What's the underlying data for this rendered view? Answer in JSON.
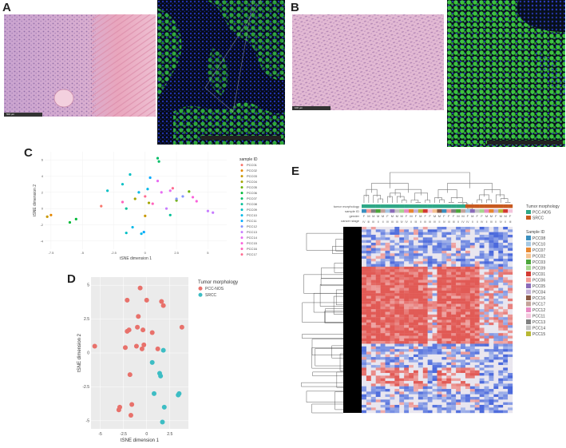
{
  "panels": {
    "A": "A",
    "B": "B",
    "C": "C",
    "D": "D",
    "E": "E"
  },
  "micrographs": {
    "A_he_scale": "500 µm",
    "B_he_scale": "100 µm"
  },
  "colors": {
    "he_pink": "#e7b8cf",
    "he_purple": "#9a6fa8",
    "if_green": "#3ad13a",
    "if_blue": "#1e2a9c",
    "heat_high": "#e8635a",
    "heat_low": "#4a6fd0",
    "pcc_nos": "#2fa887",
    "srcc": "#c85a20",
    "d_pcc": "#e8716b",
    "d_srcc": "#3dbdc4"
  },
  "chart_data": [
    {
      "panel": "C",
      "type": "scatter",
      "xlabel": "tSNE dimension 1",
      "ylabel": "tSNE dimension 2",
      "xticks": [
        -7.5,
        -5.0,
        -2.5,
        0.0,
        2.5,
        5.0
      ],
      "yticks": [
        -4,
        -2,
        0,
        2,
        4,
        6
      ],
      "xlim": [
        -8,
        6.5
      ],
      "ylim": [
        -5,
        7
      ],
      "legend_title": "sample ID",
      "legend_position": "right",
      "series": [
        {
          "name": "PCC01",
          "color": "#f8766d",
          "points": [
            [
              -3.5,
              0.3
            ]
          ]
        },
        {
          "name": "PCC02",
          "color": "#e58700",
          "points": [
            [
              -7.5,
              -0.8
            ]
          ]
        },
        {
          "name": "PCC03",
          "color": "#c99800",
          "points": [
            [
              -7.8,
              -1.0
            ],
            [
              0.0,
              -0.9
            ]
          ]
        },
        {
          "name": "PCC04",
          "color": "#a3a500",
          "points": [
            [
              -0.8,
              1.2
            ],
            [
              0.3,
              0.7
            ]
          ]
        },
        {
          "name": "PCC05",
          "color": "#6bb100",
          "points": [
            [
              2.5,
              1.0
            ],
            [
              3.5,
              2.1
            ]
          ]
        },
        {
          "name": "PCC06",
          "color": "#00ba38",
          "points": [
            [
              -5.5,
              -1.3
            ],
            [
              -6.0,
              -1.7
            ]
          ]
        },
        {
          "name": "PCC07",
          "color": "#00be67",
          "points": [
            [
              1.0,
              6.2
            ],
            [
              1.1,
              5.8
            ]
          ]
        },
        {
          "name": "PCC08",
          "color": "#00bf96",
          "points": [
            [
              -1.5,
              0.0
            ],
            [
              2.0,
              -0.8
            ]
          ]
        },
        {
          "name": "PCC09",
          "color": "#00bfc4",
          "points": [
            [
              -3.0,
              2.2
            ],
            [
              -1.8,
              3.0
            ],
            [
              -1.5,
              -3.0
            ],
            [
              -1.2,
              4.2
            ]
          ]
        },
        {
          "name": "PCC10",
          "color": "#00b8e7",
          "points": [
            [
              -0.5,
              2.0
            ],
            [
              0.2,
              2.4
            ],
            [
              -1.0,
              -2.3
            ],
            [
              -0.3,
              -3.1
            ]
          ]
        },
        {
          "name": "PCC11",
          "color": "#00a9ff",
          "points": [
            [
              0.4,
              3.8
            ],
            [
              -0.1,
              -2.9
            ]
          ]
        },
        {
          "name": "PCC12",
          "color": "#8494ff",
          "points": [
            [
              2.5,
              1.2
            ],
            [
              3.0,
              1.5
            ]
          ]
        },
        {
          "name": "PCC13",
          "color": "#c77cff",
          "points": [
            [
              1.7,
              0.0
            ],
            [
              5.0,
              -0.3
            ],
            [
              5.4,
              -0.5
            ]
          ]
        },
        {
          "name": "PCC14",
          "color": "#e76bf3",
          "points": [
            [
              1.3,
              2.0
            ],
            [
              2.0,
              2.2
            ],
            [
              1.0,
              3.4
            ]
          ]
        },
        {
          "name": "PCC15",
          "color": "#fa62db",
          "points": [
            [
              3.8,
              1.4
            ],
            [
              4.1,
              0.9
            ]
          ]
        },
        {
          "name": "PCC16",
          "color": "#ff62bc",
          "points": [
            [
              0.6,
              0.6
            ],
            [
              -1.8,
              0.8
            ]
          ]
        },
        {
          "name": "PCC17",
          "color": "#ff6c91",
          "points": [
            [
              2.2,
              2.5
            ],
            [
              0.0,
              1.5
            ]
          ]
        }
      ]
    },
    {
      "panel": "D",
      "type": "scatter",
      "xlabel": "tSNE dimension 1",
      "ylabel": "tSNE dimension 2",
      "xticks": [
        -5.0,
        -2.5,
        0.0,
        2.5
      ],
      "yticks": [
        -5.0,
        -2.5,
        0.0,
        2.5,
        5.0
      ],
      "xlim": [
        -6,
        4.5
      ],
      "ylim": [
        -5.6,
        5.6
      ],
      "legend_title": "Tumor morphology",
      "legend_position": "right",
      "series": [
        {
          "name": "PCC-NOS",
          "color": "#e8716b",
          "points": [
            [
              -0.7,
              4.8
            ],
            [
              -2.1,
              3.9
            ],
            [
              0.0,
              3.9
            ],
            [
              1.6,
              3.8
            ],
            [
              1.8,
              3.5
            ],
            [
              -0.9,
              2.7
            ],
            [
              -1.9,
              1.7
            ],
            [
              -2.1,
              1.6
            ],
            [
              -1.0,
              1.9
            ],
            [
              -0.4,
              1.7
            ],
            [
              0.6,
              1.5
            ],
            [
              3.8,
              1.9
            ],
            [
              -5.6,
              0.5
            ],
            [
              -2.3,
              0.4
            ],
            [
              -1.1,
              0.5
            ],
            [
              -0.3,
              0.6
            ],
            [
              -0.5,
              0.3
            ],
            [
              1.2,
              0.3
            ],
            [
              -1.8,
              -1.6
            ],
            [
              -2.9,
              -4.0
            ],
            [
              -3.0,
              -4.2
            ],
            [
              -1.6,
              -3.8
            ],
            [
              -1.7,
              -4.6
            ]
          ]
        },
        {
          "name": "SRCC",
          "color": "#3dbdc4",
          "points": [
            [
              1.8,
              0.2
            ],
            [
              0.6,
              -0.7
            ],
            [
              1.4,
              -1.5
            ],
            [
              1.5,
              -1.7
            ],
            [
              0.8,
              -3.0
            ],
            [
              3.5,
              -3.0
            ],
            [
              3.4,
              -3.1
            ],
            [
              1.9,
              -4.0
            ],
            [
              1.7,
              -5.1
            ]
          ]
        }
      ]
    },
    {
      "panel": "E",
      "type": "heatmap",
      "annotation_labels": [
        "tumor morphology",
        "sample ID",
        "gender",
        "cancer stage"
      ],
      "gender_row": [
        "F",
        "M",
        "M",
        "M",
        "M",
        "F",
        "M",
        "M",
        "M",
        "F",
        "M",
        "F",
        "M",
        "F",
        "F",
        "M",
        "M",
        "F",
        "F",
        "F",
        "M",
        "M",
        "F",
        "M",
        "F",
        "F",
        "M",
        "M",
        "F",
        "M",
        "M",
        "F"
      ],
      "stage_row": [
        "IV",
        "III",
        "III",
        "II",
        "II",
        "IV",
        "III",
        "III",
        "IV",
        "IV",
        "II",
        "III",
        "II",
        "III",
        "III",
        "IV",
        "II",
        "IV",
        "III",
        "III",
        "II",
        "IV",
        "IV",
        "II",
        "II",
        "IV",
        "II",
        "III",
        "II",
        "IV",
        "II",
        "III"
      ],
      "legend_morphology_title": "Tumor morphology",
      "legend_morphology": [
        {
          "name": "PCC-NOS",
          "color": "#2fa887"
        },
        {
          "name": "SRCC",
          "color": "#c85a20"
        }
      ],
      "legend_sample_title": "Sample ID",
      "legend_samples": [
        {
          "name": "PCC08",
          "color": "#3a8fbf"
        },
        {
          "name": "PCC10",
          "color": "#a5c8e3"
        },
        {
          "name": "PCC07",
          "color": "#e8872e"
        },
        {
          "name": "PCC02",
          "color": "#f5c28f"
        },
        {
          "name": "PCC03",
          "color": "#4ca63a"
        },
        {
          "name": "PCC09",
          "color": "#a5d88e"
        },
        {
          "name": "PCC01",
          "color": "#d33a33"
        },
        {
          "name": "PCC06",
          "color": "#f49a95"
        },
        {
          "name": "PCC05",
          "color": "#8a6ab8"
        },
        {
          "name": "PCC04",
          "color": "#c4b1d8"
        },
        {
          "name": "PCC16",
          "color": "#8a5a46"
        },
        {
          "name": "PCC17",
          "color": "#c4a299"
        },
        {
          "name": "PCC12",
          "color": "#e88ac4"
        },
        {
          "name": "PCC11",
          "color": "#f4c5dd"
        },
        {
          "name": "PCC13",
          "color": "#808080"
        },
        {
          "name": "PCC14",
          "color": "#c4c4c4"
        },
        {
          "name": "PCC15",
          "color": "#b8b833"
        }
      ]
    }
  ]
}
